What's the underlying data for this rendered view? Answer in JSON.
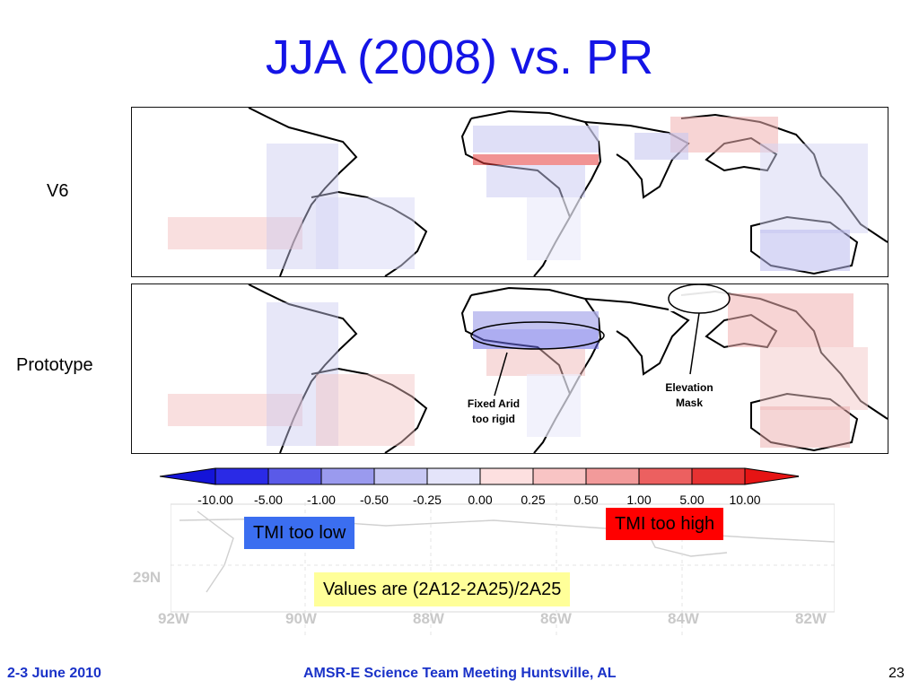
{
  "title": "JJA (2008) vs. PR",
  "panels": [
    {
      "label": "V6"
    },
    {
      "label": "Prototype"
    }
  ],
  "annotations": {
    "arid": [
      "Fixed Arid",
      "too rigid"
    ],
    "elevation": [
      "Elevation",
      "Mask"
    ]
  },
  "colorbar": {
    "ticks": [
      "-10.00",
      "-5.00",
      "-1.00",
      "-0.50",
      "-0.25",
      "0.00",
      "0.25",
      "0.50",
      "1.00",
      "5.00",
      "10.00"
    ],
    "colors": [
      "#2a2ae6",
      "#5a5ae8",
      "#9a9aee",
      "#c8c8f4",
      "#e4e4fa",
      "#fde0e0",
      "#f8c4c4",
      "#f29a9a",
      "#ec6060",
      "#e63232"
    ],
    "low_arrow_color": "#1414d8",
    "high_arrow_color": "#e61414"
  },
  "background_map": {
    "lon_labels": [
      "92W",
      "90W",
      "88W",
      "86W",
      "84W",
      "82W"
    ],
    "lat_label": "29N"
  },
  "legend": {
    "low": {
      "text": "TMI too low",
      "color": "#3b6ef0"
    },
    "high": {
      "text": "TMI too high",
      "color": "#ff0000"
    },
    "formula": {
      "text": "Values are (2A12-2A25)/2A25",
      "color": "#ffff99"
    }
  },
  "footer": {
    "date": "2-3 June 2010",
    "meeting": "AMSR-E Science Team Meeting  Huntsville, AL",
    "page": "23"
  }
}
